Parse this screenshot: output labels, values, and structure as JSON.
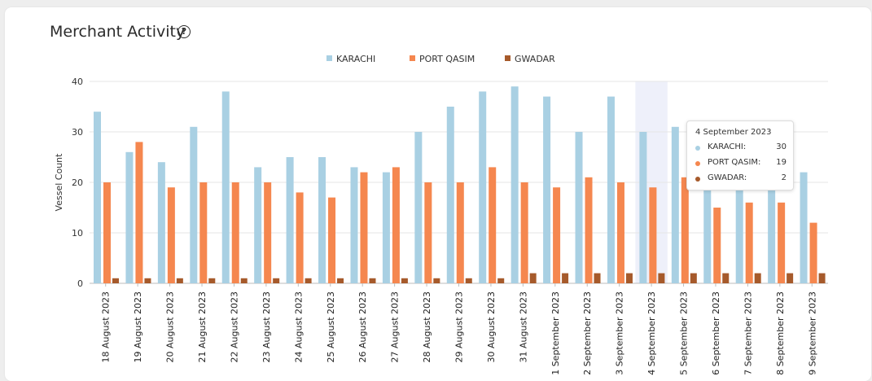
{
  "header": {
    "title": "Merchant Activity",
    "help_icon": "question-circle-icon"
  },
  "tooltip": {
    "title": "4 September 2023",
    "rows": [
      {
        "label": "KARACHI:",
        "value": "30",
        "color": "#a9d0e3"
      },
      {
        "label": "PORT QASIM:",
        "value": "19",
        "color": "#f5874f"
      },
      {
        "label": "GWADAR:",
        "value": "2",
        "color": "#a65a2b"
      }
    ]
  },
  "chart_data": {
    "type": "bar",
    "title": "Merchant Activity",
    "xlabel": "",
    "ylabel": "Vessel Count",
    "ylim": [
      0,
      40
    ],
    "yticks": [
      0,
      10,
      20,
      30,
      40
    ],
    "grid": true,
    "legend": "top-center",
    "highlighted_category": "4 September 2023",
    "categories": [
      "18 August 2023",
      "19 August 2023",
      "20 August 2023",
      "21 August 2023",
      "22 August 2023",
      "23 August 2023",
      "24 August 2023",
      "25 August 2023",
      "26 August 2023",
      "27 August 2023",
      "28 August 2023",
      "29 August 2023",
      "30 August 2023",
      "31 August 2023",
      "1 September 2023",
      "2 September 2023",
      "3 September 2023",
      "4 September 2023",
      "5 September 2023",
      "6 September 2023",
      "7 September 2023",
      "8 September 2023",
      "9 September 2023"
    ],
    "series": [
      {
        "name": "KARACHI",
        "color": "#a9d0e3",
        "values": [
          34,
          26,
          24,
          31,
          38,
          23,
          25,
          25,
          23,
          22,
          30,
          35,
          38,
          39,
          37,
          30,
          37,
          30,
          31,
          22,
          20,
          22,
          22
        ]
      },
      {
        "name": "PORT QASIM",
        "color": "#f5874f",
        "values": [
          20,
          28,
          19,
          20,
          20,
          20,
          18,
          17,
          22,
          23,
          20,
          20,
          23,
          20,
          19,
          21,
          20,
          19,
          21,
          15,
          16,
          16,
          12
        ]
      },
      {
        "name": "GWADAR",
        "color": "#a65a2b",
        "values": [
          1,
          1,
          1,
          1,
          1,
          1,
          1,
          1,
          1,
          1,
          1,
          1,
          1,
          2,
          2,
          2,
          2,
          2,
          2,
          2,
          2,
          2,
          2
        ]
      }
    ]
  }
}
